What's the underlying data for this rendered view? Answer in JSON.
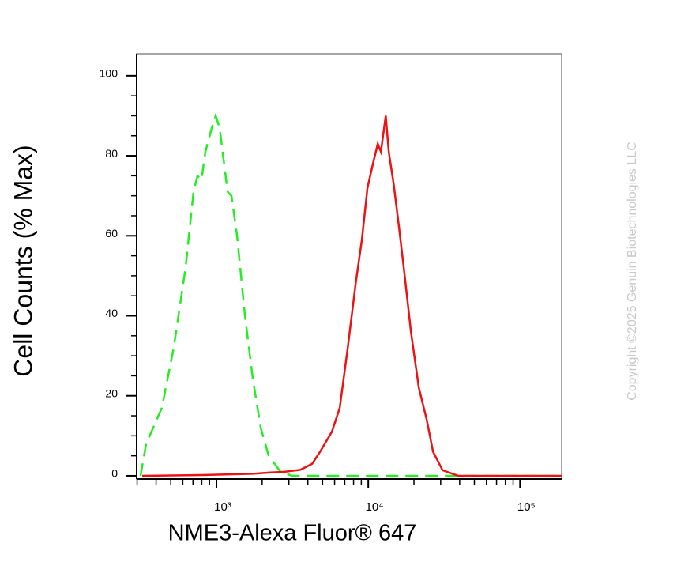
{
  "chart_data": {
    "type": "line",
    "xlabel": "NME3-Alexa Fluor® 647",
    "ylabel": "Cell Counts (% Max)",
    "annotation": "Copyright ©2025 Genuin Biotechnologies LLC",
    "xscale": "log",
    "xlim": [
      298,
      188000
    ],
    "ylim": [
      -0.8,
      105.5
    ],
    "xticks": [
      {
        "value": 1000,
        "label": "10³"
      },
      {
        "value": 10000,
        "label": "10⁴"
      },
      {
        "value": 100000,
        "label": "10⁵"
      }
    ],
    "xminorticks": [
      300,
      400,
      500,
      600,
      700,
      800,
      900,
      2000,
      3000,
      4000,
      5000,
      6000,
      7000,
      8000,
      9000,
      20000,
      30000,
      40000,
      50000,
      60000,
      70000,
      80000,
      90000
    ],
    "yticks": [
      0,
      20,
      40,
      60,
      80,
      100
    ],
    "yminorticks": [
      5,
      10,
      15,
      25,
      30,
      35,
      45,
      50,
      55,
      65,
      70,
      75,
      85,
      90,
      95
    ],
    "series": [
      {
        "color": "#22ee22",
        "dashed": true,
        "x": [
          316,
          344,
          437,
          523,
          626,
          706,
          750,
          796,
          845,
          931,
          988,
          1049,
          1183,
          1256,
          1366,
          1540,
          1738,
          1958,
          2207,
          2642,
          3162,
          188000
        ],
        "values": [
          0,
          8,
          17,
          32,
          52,
          71,
          75,
          74,
          81,
          87,
          90,
          87,
          71,
          70,
          60,
          40,
          24,
          12,
          5,
          1,
          0,
          0
        ]
      },
      {
        "color": "#ee1111",
        "dashed": false,
        "x": [
          324,
          845,
          1738,
          2207,
          2805,
          3565,
          4266,
          4810,
          5757,
          6494,
          7323,
          8254,
          9082,
          9885,
          10740,
          11550,
          12110,
          13030,
          13650,
          14690,
          15960,
          17380,
          19100,
          21540,
          24270,
          26730,
          30900,
          39260,
          188000
        ],
        "values": [
          0,
          0.2,
          0.5,
          0.8,
          1,
          1.5,
          3,
          6,
          11,
          17,
          32,
          48,
          59,
          72,
          78,
          83,
          81,
          90,
          81,
          73,
          62,
          50,
          36,
          22,
          14,
          6,
          1.4,
          0,
          0
        ]
      }
    ]
  }
}
